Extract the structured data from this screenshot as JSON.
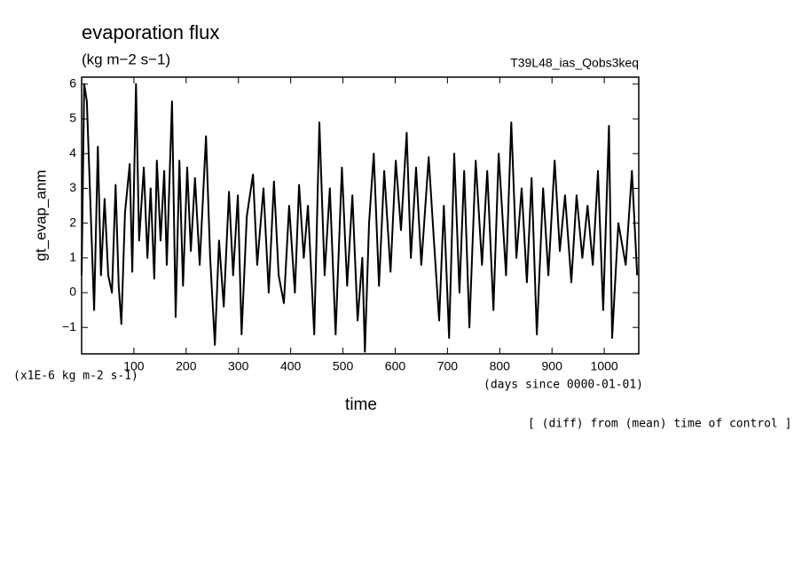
{
  "chart_data": {
    "type": "line",
    "title": "evaporation flux",
    "subtitle": "(kg m−2 s−1)",
    "run_label": "T39L48_ias_Qobs3keq",
    "y_label": "gt_evap_anm",
    "y_unit": "(x1E-6 kg m-2 s-1)",
    "x_label": "time",
    "x_unit": "(days since 0000-01-01)",
    "note": "[ (diff) from (mean) time of control ]",
    "color": "#000000",
    "xlim": [
      0,
      1066
    ],
    "ylim": [
      -1.76,
      6.2
    ],
    "xticks": [
      100,
      200,
      300,
      400,
      500,
      600,
      700,
      800,
      900,
      1000
    ],
    "yticks": [
      {
        "value": -1,
        "label": "−1"
      },
      0,
      1,
      2,
      3,
      4,
      5,
      6
    ],
    "x": [
      0,
      5,
      10,
      17,
      24,
      31,
      37,
      44,
      51,
      58,
      65,
      71,
      76,
      83,
      92,
      97,
      104,
      110,
      119,
      126,
      132,
      139,
      144,
      151,
      158,
      163,
      173,
      180,
      187,
      194,
      202,
      209,
      217,
      226,
      238,
      246,
      255,
      263,
      272,
      282,
      290,
      299,
      306,
      316,
      328,
      336,
      348,
      358,
      368,
      377,
      387,
      397,
      408,
      416,
      425,
      433,
      445,
      455,
      465,
      475,
      486,
      498,
      508,
      518,
      528,
      537,
      542,
      550,
      559,
      569,
      579,
      591,
      601,
      611,
      622,
      630,
      640,
      650,
      664,
      674,
      684,
      693,
      703,
      713,
      723,
      732,
      742,
      754,
      766,
      776,
      788,
      798,
      812,
      822,
      832,
      842,
      852,
      861,
      871,
      883,
      893,
      905,
      915,
      925,
      937,
      947,
      958,
      968,
      978,
      988,
      998,
      1009,
      1015,
      1027,
      1041,
      1053,
      1063
    ],
    "values": [
      0.5,
      6.0,
      5.5,
      2.5,
      -0.5,
      4.2,
      0.5,
      2.7,
      0.5,
      0,
      3.1,
      0.2,
      -0.9,
      2.3,
      3.7,
      0.6,
      6.0,
      1.5,
      3.6,
      1.0,
      3.0,
      0.4,
      3.8,
      1.5,
      3.5,
      0.8,
      5.5,
      -0.7,
      3.8,
      0.2,
      3.6,
      1.2,
      3.3,
      0.8,
      4.5,
      1.0,
      -1.5,
      1.5,
      -0.4,
      2.9,
      0.5,
      2.8,
      -1.2,
      2.2,
      3.4,
      0.8,
      3.0,
      0.0,
      3.2,
      0.5,
      -0.3,
      2.5,
      0.0,
      3.1,
      1.0,
      2.5,
      -1.2,
      4.9,
      0.5,
      3.0,
      -1.2,
      3.6,
      0.2,
      2.8,
      -0.8,
      1.0,
      -1.7,
      2.0,
      4.0,
      0.2,
      3.5,
      0.6,
      3.8,
      1.8,
      4.6,
      1.0,
      3.6,
      0.8,
      3.9,
      1.5,
      -0.8,
      2.5,
      -1.3,
      4.0,
      0.0,
      3.5,
      -1.0,
      3.8,
      0.8,
      3.5,
      -0.5,
      4.0,
      0.5,
      4.9,
      1.0,
      3.0,
      0.3,
      3.3,
      -1.2,
      3.0,
      0.5,
      3.8,
      1.2,
      2.8,
      0.3,
      2.8,
      1.0,
      2.5,
      0.8,
      3.5,
      -0.5,
      4.8,
      -1.3,
      2.0,
      0.8,
      3.5,
      0.5
    ]
  }
}
